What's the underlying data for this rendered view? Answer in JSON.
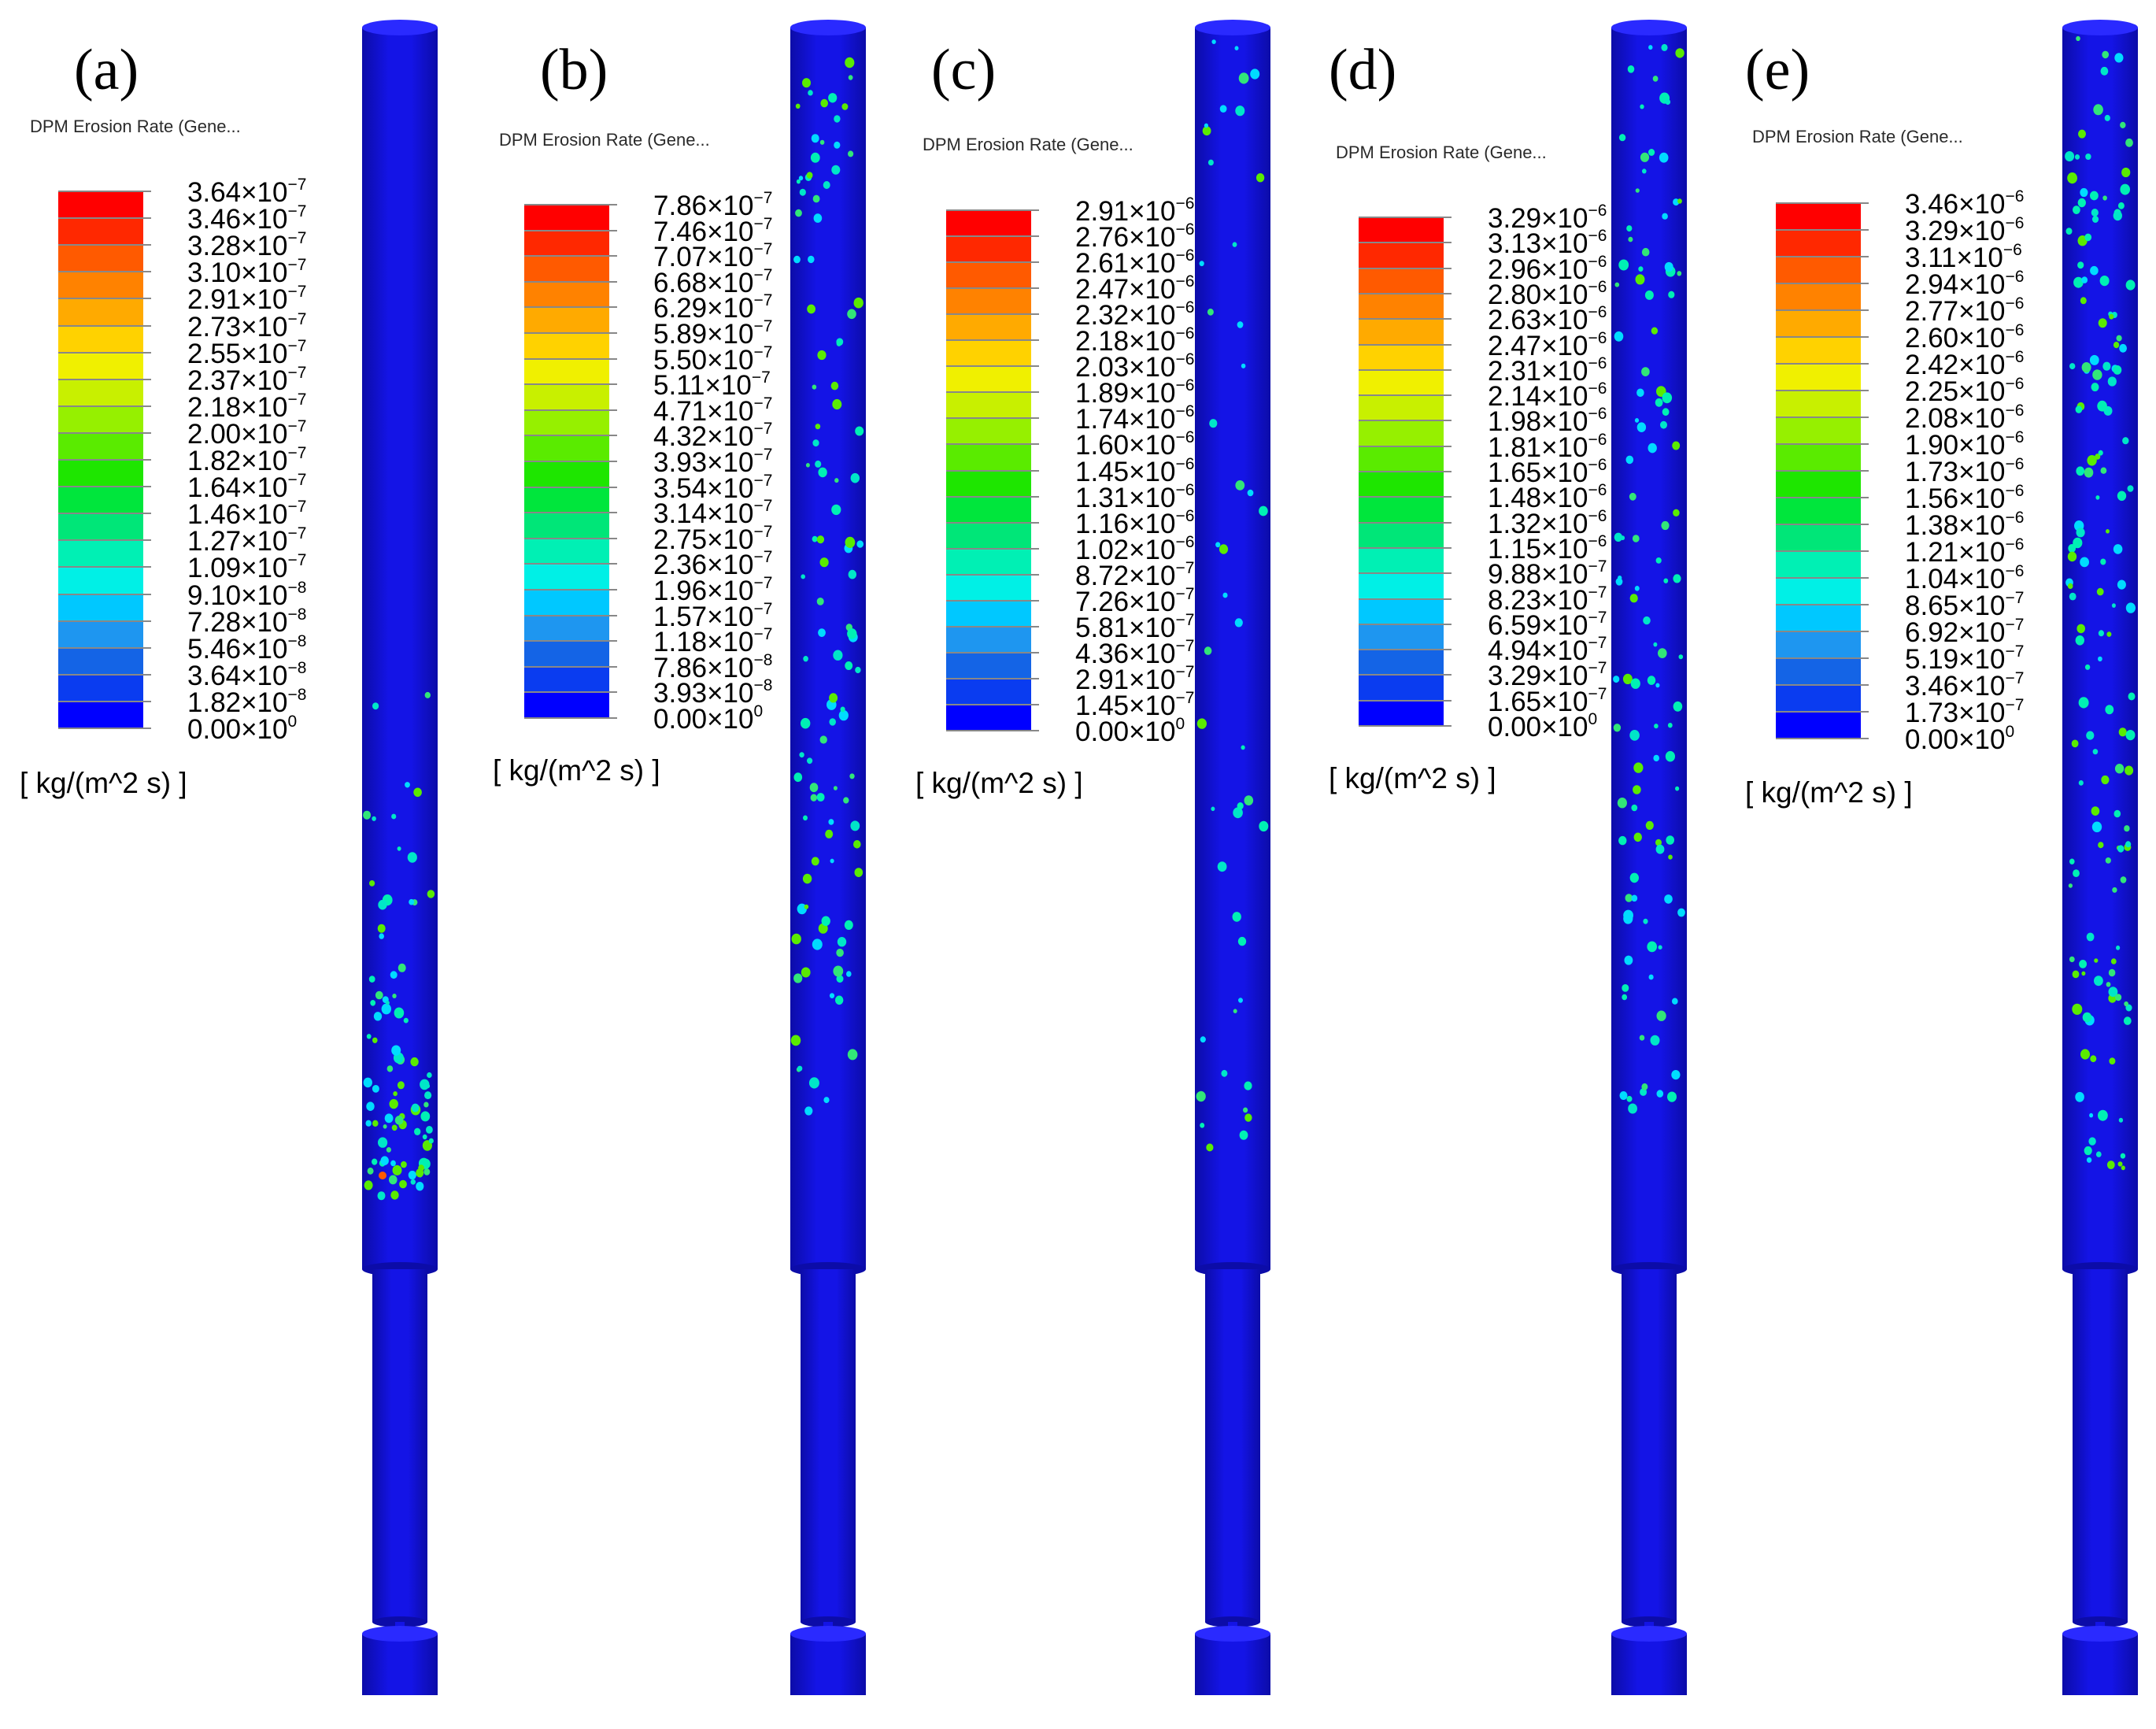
{
  "colors": {
    "pipe": "#1414e6",
    "pipe_edge": "#0c0ca8",
    "scale": [
      "#0000ff",
      "#0a3cf0",
      "#1464e6",
      "#1e96f0",
      "#00c8ff",
      "#00f0e6",
      "#00f0b4",
      "#00e678",
      "#00e63c",
      "#1ee600",
      "#5aeb00",
      "#96f000",
      "#c8f000",
      "#f0f000",
      "#ffd200",
      "#ffaa00",
      "#ff8200",
      "#ff5a00",
      "#ff2800",
      "#ff0000"
    ]
  },
  "units_label": "[ kg/(m^2 s) ]",
  "panels": [
    {
      "label": "(a)",
      "colorbar_title": "DPM Erosion Rate (Gene...",
      "ticks": [
        {
          "m": "3.64",
          "e": "-7"
        },
        {
          "m": "3.46",
          "e": "-7"
        },
        {
          "m": "3.28",
          "e": "-7"
        },
        {
          "m": "3.10",
          "e": "-7"
        },
        {
          "m": "2.91",
          "e": "-7"
        },
        {
          "m": "2.73",
          "e": "-7"
        },
        {
          "m": "2.55",
          "e": "-7"
        },
        {
          "m": "2.37",
          "e": "-7"
        },
        {
          "m": "2.18",
          "e": "-7"
        },
        {
          "m": "2.00",
          "e": "-7"
        },
        {
          "m": "1.82",
          "e": "-7"
        },
        {
          "m": "1.64",
          "e": "-7"
        },
        {
          "m": "1.46",
          "e": "-7"
        },
        {
          "m": "1.27",
          "e": "-7"
        },
        {
          "m": "1.09",
          "e": "-7"
        },
        {
          "m": "9.10",
          "e": "-8"
        },
        {
          "m": "7.28",
          "e": "-8"
        },
        {
          "m": "5.46",
          "e": "-8"
        },
        {
          "m": "3.64",
          "e": "-8"
        },
        {
          "m": "1.82",
          "e": "-8"
        },
        {
          "m": "0.00",
          "e": "0"
        }
      ]
    },
    {
      "label": "(b)",
      "colorbar_title": "DPM Erosion Rate (Gene...",
      "ticks": [
        {
          "m": "7.86",
          "e": "-7"
        },
        {
          "m": "7.46",
          "e": "-7"
        },
        {
          "m": "7.07",
          "e": "-7"
        },
        {
          "m": "6.68",
          "e": "-7"
        },
        {
          "m": "6.29",
          "e": "-7"
        },
        {
          "m": "5.89",
          "e": "-7"
        },
        {
          "m": "5.50",
          "e": "-7"
        },
        {
          "m": "5.11",
          "e": "-7"
        },
        {
          "m": "4.71",
          "e": "-7"
        },
        {
          "m": "4.32",
          "e": "-7"
        },
        {
          "m": "3.93",
          "e": "-7"
        },
        {
          "m": "3.54",
          "e": "-7"
        },
        {
          "m": "3.14",
          "e": "-7"
        },
        {
          "m": "2.75",
          "e": "-7"
        },
        {
          "m": "2.36",
          "e": "-7"
        },
        {
          "m": "1.96",
          "e": "-7"
        },
        {
          "m": "1.57",
          "e": "-7"
        },
        {
          "m": "1.18",
          "e": "-7"
        },
        {
          "m": "7.86",
          "e": "-8"
        },
        {
          "m": "3.93",
          "e": "-8"
        },
        {
          "m": "0.00",
          "e": "0"
        }
      ]
    },
    {
      "label": "(c)",
      "colorbar_title": "DPM Erosion Rate (Gene...",
      "ticks": [
        {
          "m": "2.91",
          "e": "-6"
        },
        {
          "m": "2.76",
          "e": "-6"
        },
        {
          "m": "2.61",
          "e": "-6"
        },
        {
          "m": "2.47",
          "e": "-6"
        },
        {
          "m": "2.32",
          "e": "-6"
        },
        {
          "m": "2.18",
          "e": "-6"
        },
        {
          "m": "2.03",
          "e": "-6"
        },
        {
          "m": "1.89",
          "e": "-6"
        },
        {
          "m": "1.74",
          "e": "-6"
        },
        {
          "m": "1.60",
          "e": "-6"
        },
        {
          "m": "1.45",
          "e": "-6"
        },
        {
          "m": "1.31",
          "e": "-6"
        },
        {
          "m": "1.16",
          "e": "-6"
        },
        {
          "m": "1.02",
          "e": "-6"
        },
        {
          "m": "8.72",
          "e": "-7"
        },
        {
          "m": "7.26",
          "e": "-7"
        },
        {
          "m": "5.81",
          "e": "-7"
        },
        {
          "m": "4.36",
          "e": "-7"
        },
        {
          "m": "2.91",
          "e": "-7"
        },
        {
          "m": "1.45",
          "e": "-7"
        },
        {
          "m": "0.00",
          "e": "0"
        }
      ]
    },
    {
      "label": "(d)",
      "colorbar_title": "DPM Erosion Rate (Gene...",
      "ticks": [
        {
          "m": "3.29",
          "e": "-6"
        },
        {
          "m": "3.13",
          "e": "-6"
        },
        {
          "m": "2.96",
          "e": "-6"
        },
        {
          "m": "2.80",
          "e": "-6"
        },
        {
          "m": "2.63",
          "e": "-6"
        },
        {
          "m": "2.47",
          "e": "-6"
        },
        {
          "m": "2.31",
          "e": "-6"
        },
        {
          "m": "2.14",
          "e": "-6"
        },
        {
          "m": "1.98",
          "e": "-6"
        },
        {
          "m": "1.81",
          "e": "-6"
        },
        {
          "m": "1.65",
          "e": "-6"
        },
        {
          "m": "1.48",
          "e": "-6"
        },
        {
          "m": "1.32",
          "e": "-6"
        },
        {
          "m": "1.15",
          "e": "-6"
        },
        {
          "m": "9.88",
          "e": "-7"
        },
        {
          "m": "8.23",
          "e": "-7"
        },
        {
          "m": "6.59",
          "e": "-7"
        },
        {
          "m": "4.94",
          "e": "-7"
        },
        {
          "m": "3.29",
          "e": "-7"
        },
        {
          "m": "1.65",
          "e": "-7"
        },
        {
          "m": "0.00",
          "e": "0"
        }
      ]
    },
    {
      "label": "(e)",
      "colorbar_title": "DPM Erosion Rate (Gene...",
      "ticks": [
        {
          "m": "3.46",
          "e": "-6"
        },
        {
          "m": "3.29",
          "e": "-6"
        },
        {
          "m": "3.11",
          "e": "-6"
        },
        {
          "m": "2.94",
          "e": "-6"
        },
        {
          "m": "2.77",
          "e": "-6"
        },
        {
          "m": "2.60",
          "e": "-6"
        },
        {
          "m": "2.42",
          "e": "-6"
        },
        {
          "m": "2.25",
          "e": "-6"
        },
        {
          "m": "2.08",
          "e": "-6"
        },
        {
          "m": "1.90",
          "e": "-6"
        },
        {
          "m": "1.73",
          "e": "-6"
        },
        {
          "m": "1.56",
          "e": "-6"
        },
        {
          "m": "1.38",
          "e": "-6"
        },
        {
          "m": "1.21",
          "e": "-6"
        },
        {
          "m": "1.04",
          "e": "-6"
        },
        {
          "m": "8.65",
          "e": "-7"
        },
        {
          "m": "6.92",
          "e": "-7"
        },
        {
          "m": "5.19",
          "e": "-7"
        },
        {
          "m": "3.46",
          "e": "-7"
        },
        {
          "m": "1.73",
          "e": "-7"
        },
        {
          "m": "0.00",
          "e": "0"
        }
      ]
    }
  ]
}
